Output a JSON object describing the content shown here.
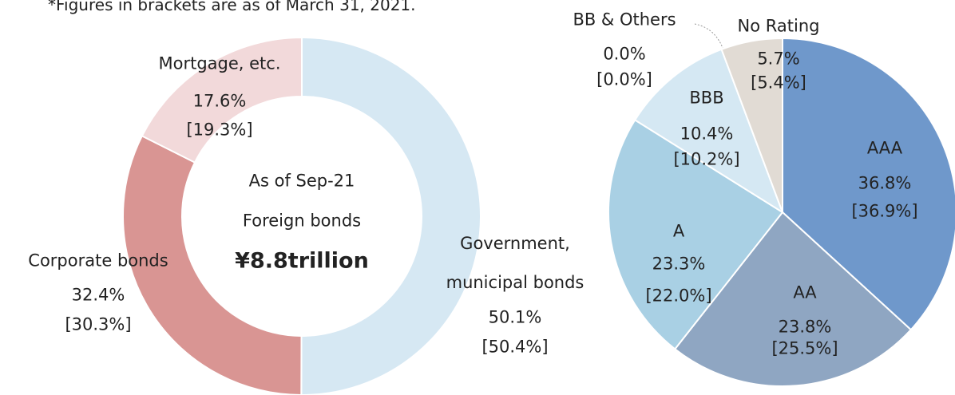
{
  "note": "*Figures in brackets are as of March 31, 2021.",
  "chart_data": [
    {
      "type": "donut",
      "center_texts": [
        "As of Sep-21",
        "Foreign bonds",
        "¥8.8trillion"
      ],
      "categories": [
        "Government, municipal bonds",
        "Corporate bonds",
        "Mortgage, etc."
      ],
      "values": [
        50.1,
        32.4,
        17.6
      ],
      "value_labels": [
        "50.1%",
        "32.4%",
        "17.6%"
      ],
      "bracket_labels": [
        "[50.4%]",
        "[30.3%]",
        "[19.3%]"
      ],
      "colors": [
        "#d6e8f3",
        "#d99593",
        "#f2d9da"
      ]
    },
    {
      "type": "pie",
      "categories": [
        "AAA",
        "AA",
        "A",
        "BBB",
        "BB & Others",
        "No Rating"
      ],
      "values": [
        36.8,
        23.8,
        23.3,
        10.4,
        0.0,
        5.7
      ],
      "value_labels": [
        "36.8%",
        "23.8%",
        "23.3%",
        "10.4%",
        "0.0%",
        "5.7%"
      ],
      "bracket_labels": [
        "[36.9%]",
        "[25.5%]",
        "[22.0%]",
        "[10.2%]",
        "[0.0%]",
        "[5.4%]"
      ],
      "colors": [
        "#6f98cb",
        "#8fa6c2",
        "#a9d0e4",
        "#d5e8f3",
        "#c9d4e0",
        "#e1dbd4"
      ]
    }
  ]
}
